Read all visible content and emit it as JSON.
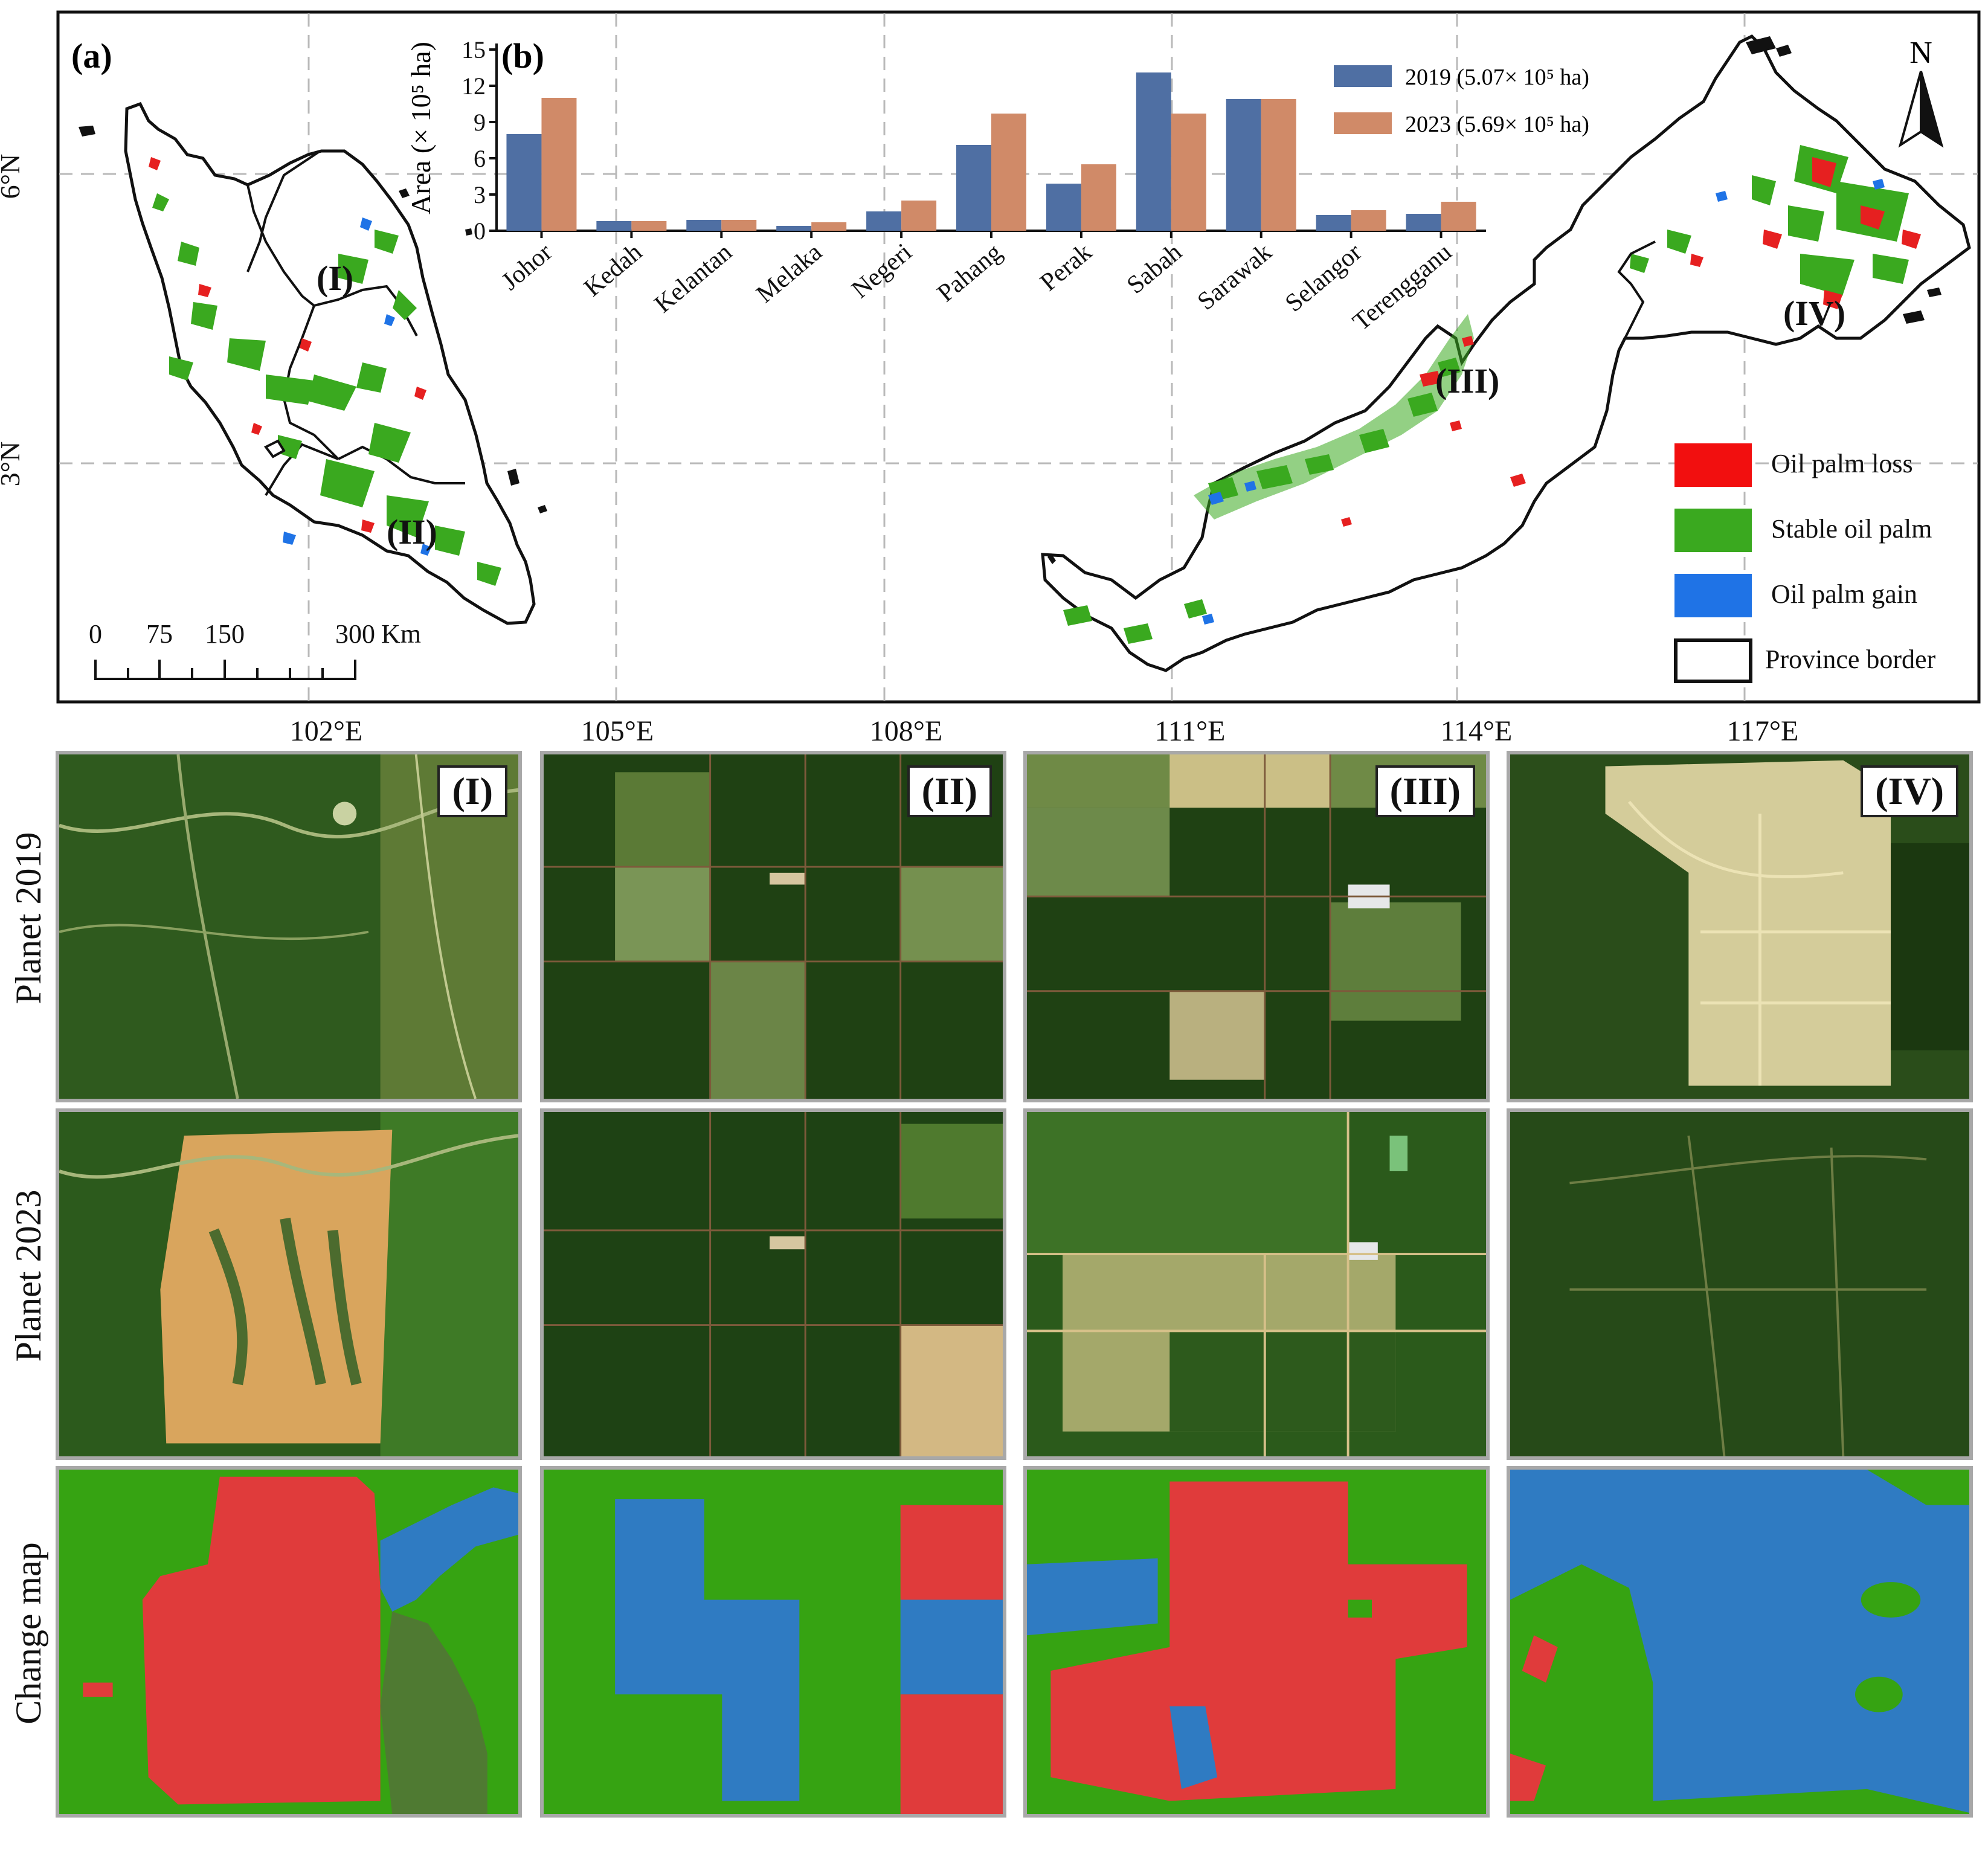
{
  "panel_a_label": "(a)",
  "panel_b_label": "(b)",
  "map": {
    "lat_labels": [
      "6°N",
      "3°N"
    ],
    "lon_labels": [
      "102°E",
      "105°E",
      "108°E",
      "111°E",
      "114°E",
      "117°E"
    ],
    "north_label": "N",
    "scale_bar": {
      "ticks": [
        "0",
        "75",
        "150",
        "300"
      ],
      "unit": "Km"
    },
    "region_labels": [
      "(I)",
      "(II)",
      "(III)",
      "(IV)"
    ],
    "legend": [
      {
        "label": "Oil palm loss",
        "color": "#f20f0f"
      },
      {
        "label": "Stable oil palm",
        "color": "#3aa91f"
      },
      {
        "label": "Oil palm gain",
        "color": "#1f73e6"
      },
      {
        "label": "Province border",
        "color": "#ffffff"
      }
    ]
  },
  "chart_data": {
    "type": "bar",
    "title": "",
    "ylabel": "Area (× 10⁵ ha)",
    "xlabel": "",
    "ylim": [
      0,
      15
    ],
    "yticks": [
      0,
      3,
      6,
      9,
      12,
      15
    ],
    "categories": [
      "Johor",
      "Kedah",
      "Kelantan",
      "Melaka",
      "Negeri",
      "Pahang",
      "Perak",
      "Sabah",
      "Sarawak",
      "Selangor",
      "Terengganu"
    ],
    "series": [
      {
        "name": "2019",
        "legend_label": "2019 (5.07× 10⁵ ha)",
        "color": "#4f6fa3",
        "values": [
          8.0,
          0.8,
          0.9,
          0.4,
          1.6,
          7.1,
          3.9,
          13.1,
          10.9,
          1.3,
          1.4
        ]
      },
      {
        "name": "2023",
        "legend_label": "2023 (5.69× 10⁵ ha)",
        "color": "#d08a68",
        "values": [
          11.0,
          0.8,
          0.9,
          0.7,
          2.5,
          9.7,
          5.5,
          9.7,
          10.9,
          1.7,
          2.4
        ]
      }
    ],
    "grid": true,
    "legend_position": "top-right"
  },
  "tiles": {
    "row_labels": [
      "Planet  2019",
      "Planet  2023",
      "Change  map"
    ],
    "column_labels": [
      "(I)",
      "(II)",
      "(III)",
      "(IV)"
    ]
  }
}
